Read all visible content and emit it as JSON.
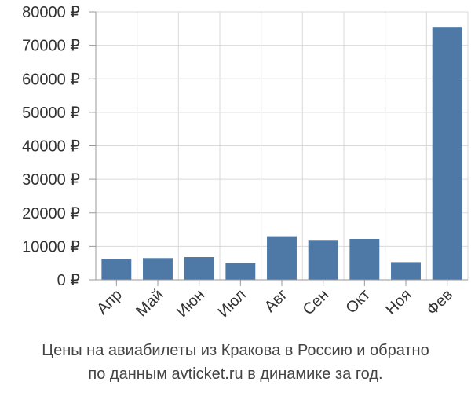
{
  "chart_data": {
    "type": "bar",
    "categories": [
      "Апр",
      "Май",
      "Июн",
      "Июл",
      "Авг",
      "Сен",
      "Окт",
      "Ноя",
      "Фев"
    ],
    "values": [
      6300,
      6500,
      6800,
      5000,
      13000,
      11900,
      12200,
      5300,
      75500
    ],
    "ylim": [
      0,
      80000
    ],
    "yticks": [
      0,
      10000,
      20000,
      30000,
      40000,
      50000,
      60000,
      70000,
      80000
    ],
    "ytick_labels": [
      "0 ₽",
      "10000 ₽",
      "20000 ₽",
      "30000 ₽",
      "40000 ₽",
      "50000 ₽",
      "60000 ₽",
      "70000 ₽",
      "80000 ₽"
    ],
    "grid": true,
    "bar_color": "#4e79a7",
    "grid_color": "#d9d9d9",
    "axis_color": "#999999"
  },
  "caption": {
    "line1": "Цены на авиабилеты из Кракова в Россию и обратно",
    "line2": "по данным avticket.ru в динамике за год."
  }
}
